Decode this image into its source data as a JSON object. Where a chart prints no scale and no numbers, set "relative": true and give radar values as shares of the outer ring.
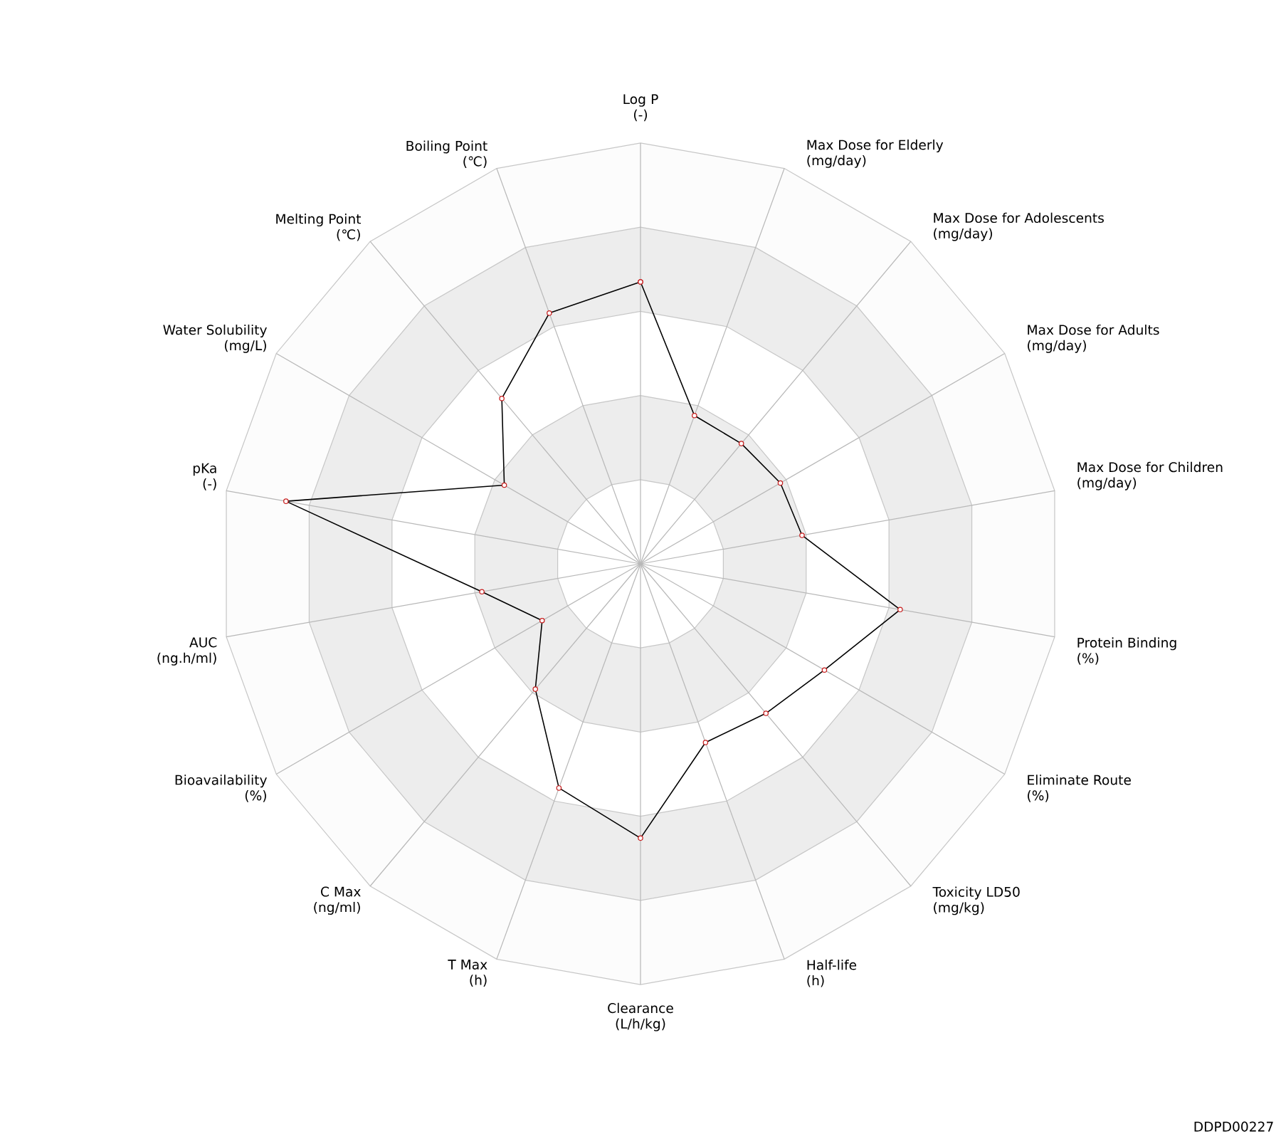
{
  "chart_data": {
    "type": "radar",
    "relative": true,
    "grid": true,
    "marker": "circle",
    "categories": [
      "Log P\n(-)",
      "Max Dose for Elderly\n(mg/day)",
      "Max Dose for Adolescents\n(mg/day)",
      "Max Dose for Adults\n(mg/day)",
      "Max Dose for Children\n(mg/day)",
      "Protein Binding\n(%)",
      "Eliminate Route\n(%)",
      "Toxicity LD50\n(mg/kg)",
      "Half-life\n(h)",
      "Clearance\n(L/h/kg)",
      "T Max\n(h)",
      "C Max\n(ng/ml)",
      "Bioavailability\n(%)",
      "AUC\n(ng.h/ml)",
      "pKa\n(-)",
      "Water Solubility\n(mg/L)",
      "Melting Point\n(℃)",
      "Boiling Point\n(℃)"
    ],
    "series": [
      {
        "color": "#000000",
        "values": [
          0.67,
          0.375,
          0.373,
          0.384,
          0.39,
          0.627,
          0.505,
          0.464,
          0.452,
          0.652,
          0.567,
          0.389,
          0.27,
          0.383,
          0.856,
          0.374,
          0.513,
          0.634
        ]
      }
    ],
    "annotations": [
      "DDPD00227"
    ]
  }
}
